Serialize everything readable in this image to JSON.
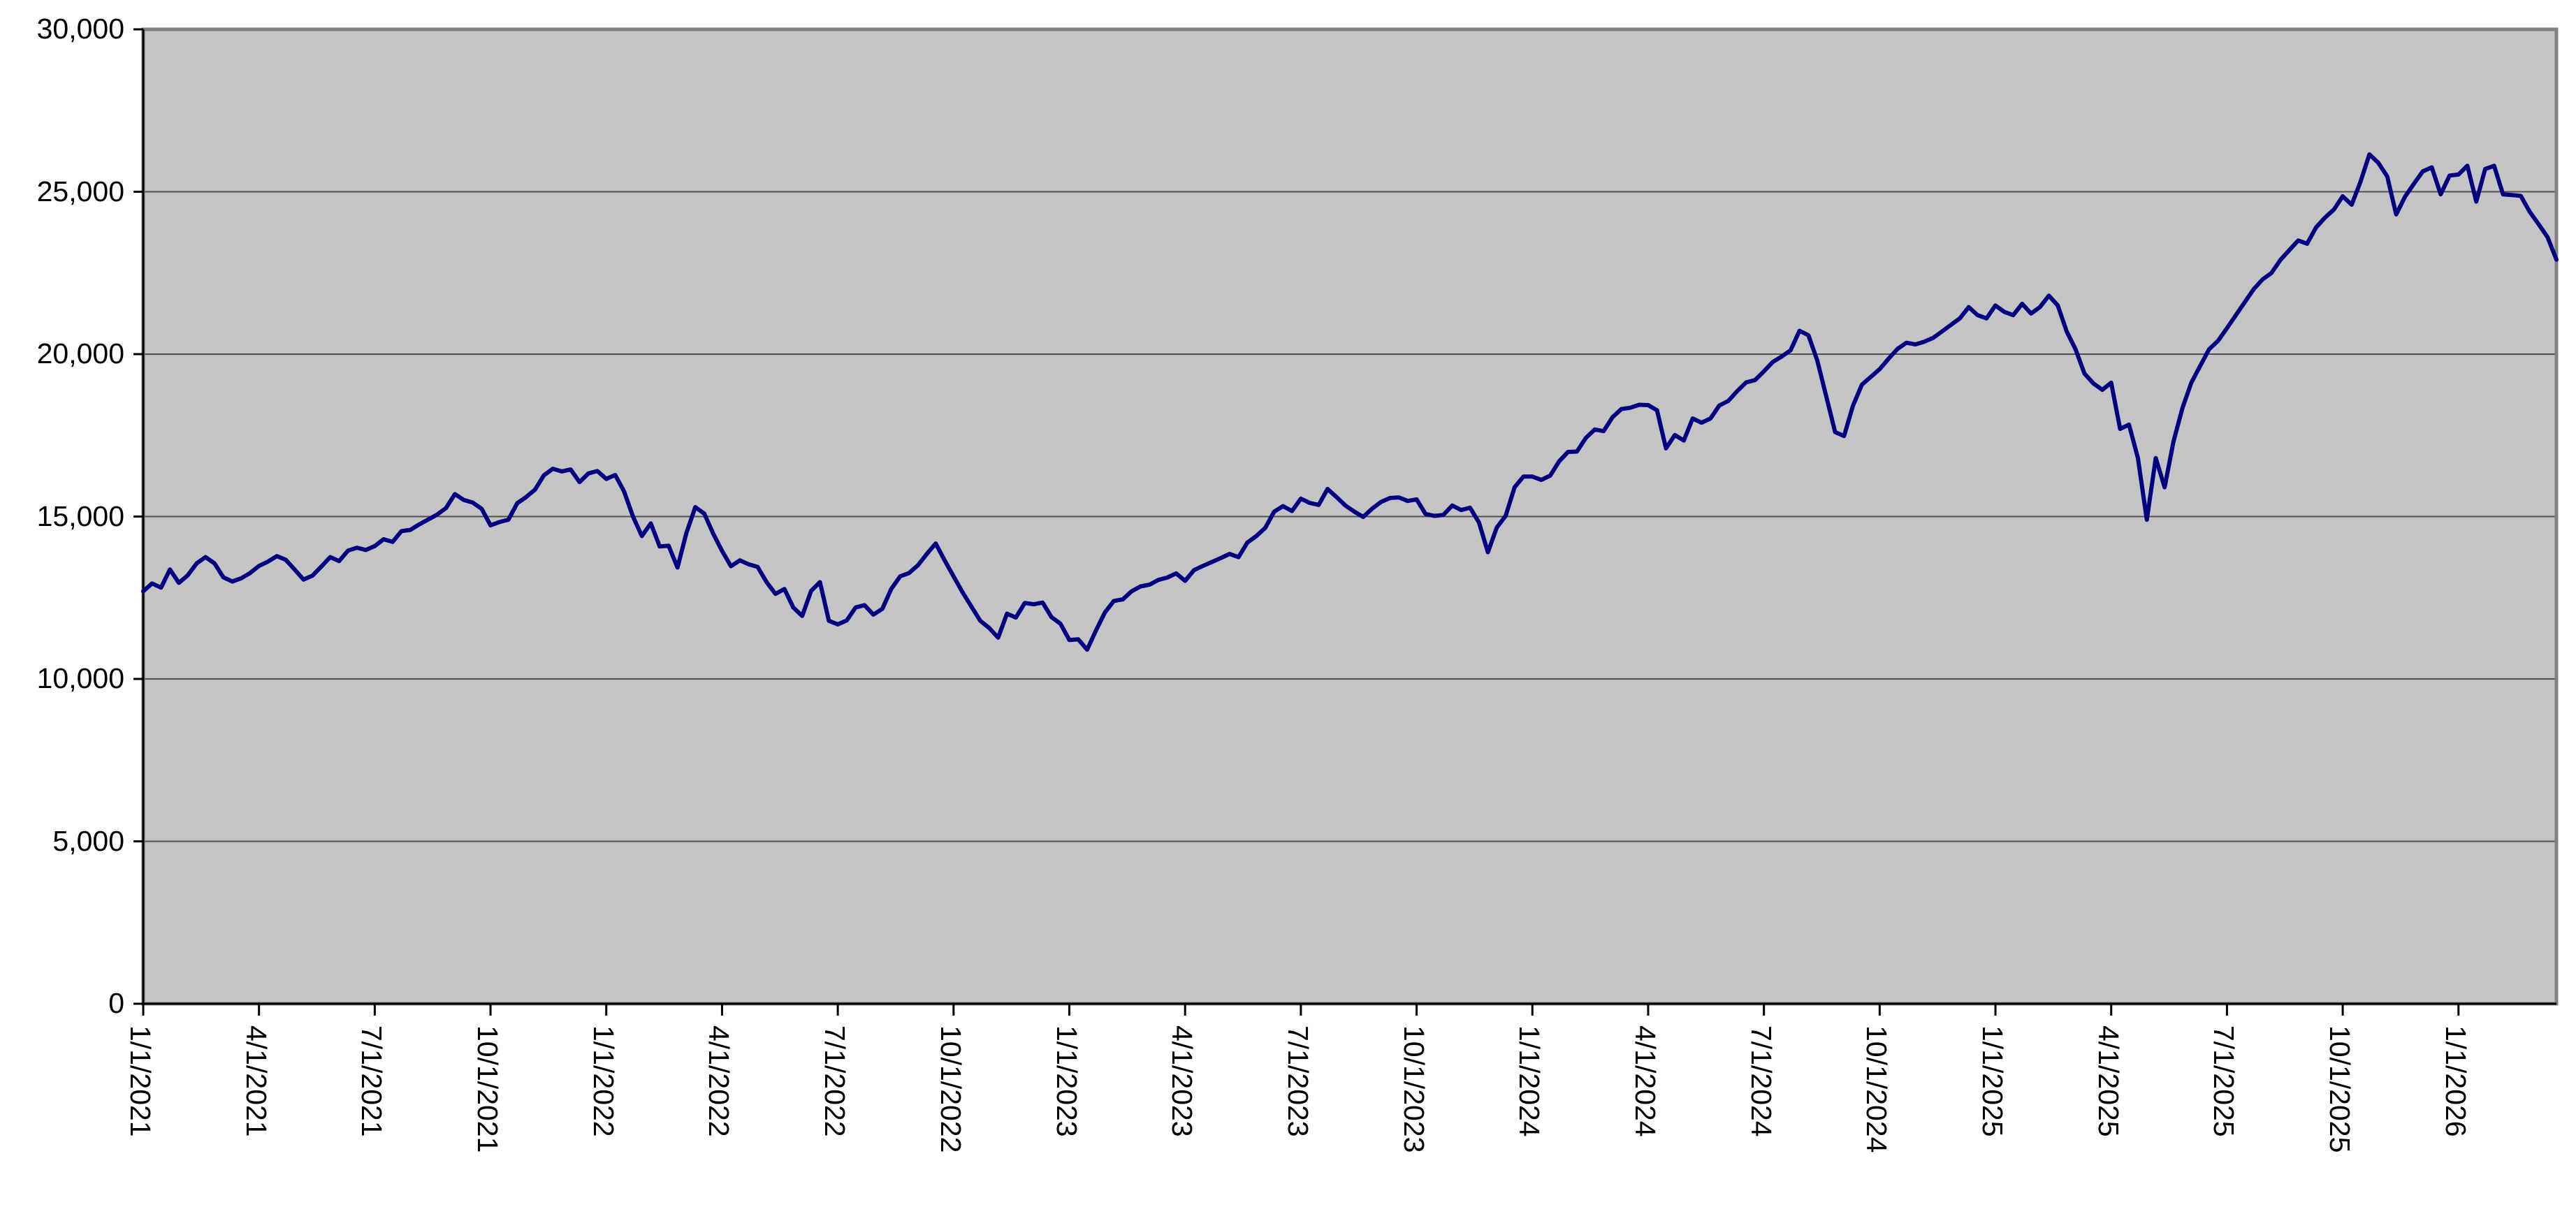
{
  "chart_data": {
    "type": "line",
    "title": "",
    "xlabel": "",
    "ylabel": "",
    "legend_position": "none",
    "grid": "horizontal",
    "plot_bg_color": "#c4c4c4",
    "plot_border_color": "#808080",
    "gridline_color": "#4f4f4f",
    "axis_color": "#000000",
    "line_color": "#000080",
    "ylim": [
      0,
      30000
    ],
    "ytick_step": 5000,
    "y_tick_labels": [
      "0",
      "5,000",
      "10,000",
      "15,000",
      "20,000",
      "25,000",
      "30,000"
    ],
    "x_tick_labels": [
      "1/1/2021",
      "4/1/2021",
      "7/1/2021",
      "10/1/2021",
      "1/1/2022",
      "4/1/2022",
      "7/1/2022",
      "10/1/2022",
      "1/1/2023",
      "4/1/2023",
      "7/1/2023",
      "10/1/2023",
      "1/1/2024",
      "4/1/2024",
      "7/1/2024",
      "10/1/2024",
      "1/1/2025",
      "4/1/2025",
      "7/1/2025",
      "10/1/2025",
      "1/1/2026"
    ],
    "points_per_x_tick": 13,
    "sampling": "weekly",
    "values": [
      12700,
      12940,
      12810,
      13370,
      12960,
      13190,
      13560,
      13750,
      13560,
      13130,
      13000,
      13100,
      13260,
      13480,
      13610,
      13780,
      13670,
      13370,
      13060,
      13180,
      13460,
      13750,
      13630,
      13950,
      14040,
      13970,
      14090,
      14300,
      14220,
      14550,
      14590,
      14760,
      14910,
      15060,
      15260,
      15690,
      15510,
      15430,
      15240,
      14730,
      14830,
      14900,
      15410,
      15600,
      15830,
      16270,
      16470,
      16390,
      16450,
      16060,
      16330,
      16400,
      16160,
      16280,
      15770,
      15000,
      14400,
      14790,
      14080,
      14100,
      13430,
      14500,
      15290,
      15090,
      14480,
      13940,
      13470,
      13650,
      13530,
      13450,
      12980,
      12620,
      12770,
      12200,
      11940,
      12710,
      12980,
      11790,
      11680,
      11800,
      12200,
      12270,
      11980,
      12160,
      12770,
      13160,
      13260,
      13500,
      13850,
      14170,
      13650,
      13160,
      12670,
      12230,
      11790,
      11570,
      11270,
      12010,
      11890,
      12340,
      12300,
      12350,
      11900,
      11700,
      11200,
      11220,
      10900,
      11500,
      12050,
      12400,
      12450,
      12700,
      12850,
      12900,
      13050,
      13120,
      13250,
      13020,
      13350,
      13480,
      13600,
      13720,
      13850,
      13750,
      14200,
      14400,
      14650,
      15150,
      15320,
      15170,
      15550,
      15420,
      15360,
      15850,
      15600,
      15340,
      15150,
      14990,
      15240,
      15450,
      15570,
      15590,
      15480,
      15530,
      15080,
      15020,
      15050,
      15340,
      15200,
      15270,
      14820,
      13900,
      14660,
      15020,
      15900,
      16230,
      16230,
      16130,
      16260,
      16700,
      16990,
      17000,
      17420,
      17680,
      17630,
      18060,
      18310,
      18350,
      18440,
      18430,
      18270,
      17100,
      17510,
      17340,
      18020,
      17890,
      18020,
      18420,
      18560,
      18860,
      19130,
      19200,
      19470,
      19760,
      19930,
      20120,
      20720,
      20580,
      19800,
      18700,
      17600,
      17480,
      18410,
      19060,
      19300,
      19540,
      19860,
      20160,
      20350,
      20300,
      20380,
      20500,
      20700,
      20900,
      21100,
      21450,
      21200,
      21100,
      21500,
      21300,
      21200,
      21550,
      21250,
      21450,
      21800,
      21500,
      20700,
      20150,
      19400,
      19100,
      18900,
      19120,
      17700,
      17830,
      16800,
      14900,
      16800,
      15900,
      17310,
      18340,
      19120,
      19640,
      20150,
      20410,
      20800,
      21200,
      21600,
      22000,
      22300,
      22500,
      22900,
      23200,
      23500,
      23400,
      23900,
      24200,
      24450,
      24860,
      24600,
      25310,
      26150,
      25890,
      25470,
      24300,
      24850,
      25250,
      25630,
      25750,
      24920,
      25500,
      25530,
      25800,
      24700,
      25700,
      25800,
      24920,
      24900,
      24870,
      24380,
      24000,
      23600,
      22910
    ]
  }
}
